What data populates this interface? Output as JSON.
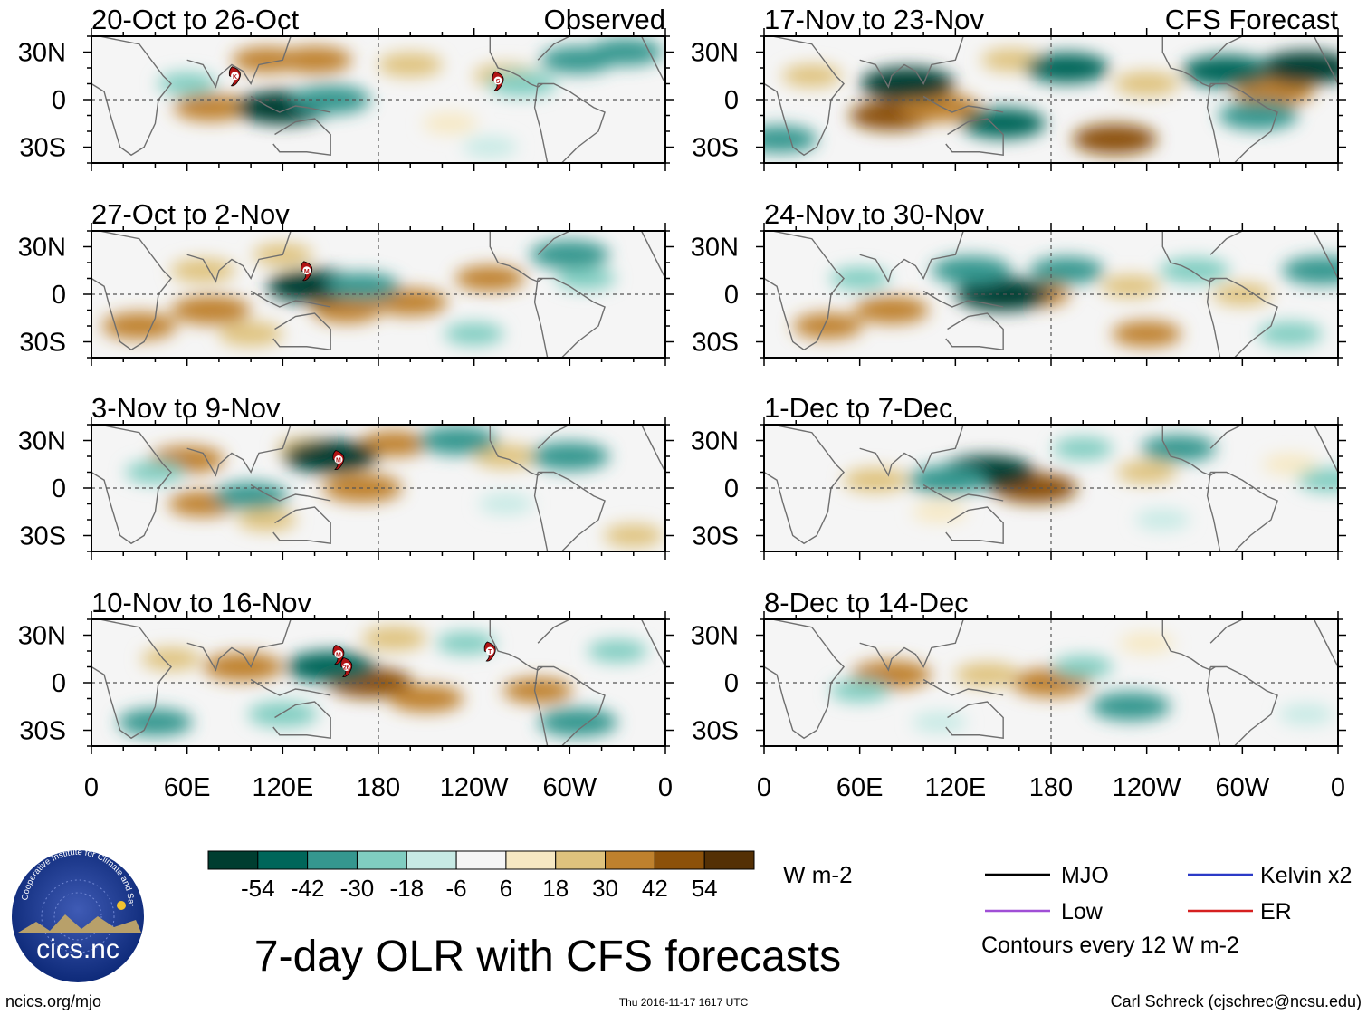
{
  "chart_data": {
    "type": "heatmap",
    "title": "7-day OLR with CFS forecasts",
    "variable": "OLR anomaly",
    "units": "W m-2",
    "lat_labels": [
      "30N",
      "0",
      "30S"
    ],
    "lat_values": [
      30,
      0,
      -30
    ],
    "lon_labels": [
      "0",
      "60E",
      "120E",
      "180",
      "120W",
      "60W",
      "0"
    ],
    "lon_values": [
      0,
      60,
      120,
      180,
      240,
      300,
      360
    ],
    "xlim": [
      0,
      360
    ],
    "ylim": [
      -40,
      40
    ],
    "left_column_label": "Observed",
    "right_column_label": "CFS Forecast",
    "panels": [
      {
        "id": "obs1",
        "column": "left",
        "row": 0,
        "title": "20-Oct to 26-Oct",
        "tag": "Observed",
        "anomalies": [
          {
            "lon": 75,
            "lat": -5,
            "value": 35
          },
          {
            "lon": 110,
            "lat": 25,
            "value": 30
          },
          {
            "lon": 140,
            "lat": 25,
            "value": 35
          },
          {
            "lon": 200,
            "lat": 22,
            "value": 25
          },
          {
            "lon": 260,
            "lat": 15,
            "value": 25
          },
          {
            "lon": 225,
            "lat": -15,
            "value": 15
          },
          {
            "lon": 120,
            "lat": -5,
            "value": -55
          },
          {
            "lon": 150,
            "lat": 0,
            "value": -40
          },
          {
            "lon": 60,
            "lat": 10,
            "value": -20
          },
          {
            "lon": 305,
            "lat": 25,
            "value": -35
          },
          {
            "lon": 335,
            "lat": 30,
            "value": -35
          },
          {
            "lon": 250,
            "lat": -30,
            "value": -15
          },
          {
            "lon": 270,
            "lat": 10,
            "value": -30
          }
        ],
        "storms": [
          {
            "label": "K",
            "lon": 90,
            "lat": 15
          },
          {
            "label": "S",
            "lon": 255,
            "lat": 12
          }
        ]
      },
      {
        "id": "obs2",
        "column": "left",
        "row": 1,
        "title": "27-Oct to 2-Nov",
        "anomalies": [
          {
            "lon": 70,
            "lat": 15,
            "value": 25
          },
          {
            "lon": 75,
            "lat": -10,
            "value": 40
          },
          {
            "lon": 120,
            "lat": 25,
            "value": 20
          },
          {
            "lon": 200,
            "lat": -5,
            "value": 35
          },
          {
            "lon": 160,
            "lat": -10,
            "value": 30
          },
          {
            "lon": 250,
            "lat": 10,
            "value": 30
          },
          {
            "lon": 30,
            "lat": -20,
            "value": 35
          },
          {
            "lon": 100,
            "lat": -25,
            "value": 25
          },
          {
            "lon": 140,
            "lat": 5,
            "value": -55
          },
          {
            "lon": 170,
            "lat": 5,
            "value": -35
          },
          {
            "lon": 300,
            "lat": 25,
            "value": -40
          },
          {
            "lon": 240,
            "lat": -25,
            "value": -20
          },
          {
            "lon": 310,
            "lat": 10,
            "value": -20
          }
        ],
        "storms": [
          {
            "label": "M",
            "lon": 135,
            "lat": 15
          }
        ]
      },
      {
        "id": "obs3",
        "column": "left",
        "row": 2,
        "title": "3-Nov to 9-Nov",
        "anomalies": [
          {
            "lon": 60,
            "lat": 18,
            "value": 35
          },
          {
            "lon": 70,
            "lat": -10,
            "value": 30
          },
          {
            "lon": 170,
            "lat": 0,
            "value": 40
          },
          {
            "lon": 190,
            "lat": 28,
            "value": 30
          },
          {
            "lon": 135,
            "lat": 25,
            "value": 20
          },
          {
            "lon": 260,
            "lat": 20,
            "value": 25
          },
          {
            "lon": 110,
            "lat": -20,
            "value": 20
          },
          {
            "lon": 340,
            "lat": -30,
            "value": 20
          },
          {
            "lon": 150,
            "lat": 20,
            "value": -55
          },
          {
            "lon": 230,
            "lat": 30,
            "value": -40
          },
          {
            "lon": 300,
            "lat": 20,
            "value": -40
          },
          {
            "lon": 100,
            "lat": -5,
            "value": -35
          },
          {
            "lon": 40,
            "lat": 10,
            "value": -20
          },
          {
            "lon": 260,
            "lat": -10,
            "value": -15
          }
        ],
        "storms": [
          {
            "label": "M",
            "lon": 155,
            "lat": 18
          }
        ]
      },
      {
        "id": "obs4",
        "column": "left",
        "row": 3,
        "title": "10-Nov to 16-Nov",
        "anomalies": [
          {
            "lon": 95,
            "lat": 10,
            "value": 40
          },
          {
            "lon": 175,
            "lat": 0,
            "value": 45
          },
          {
            "lon": 210,
            "lat": -10,
            "value": 35
          },
          {
            "lon": 190,
            "lat": 28,
            "value": 25
          },
          {
            "lon": 280,
            "lat": -5,
            "value": 30
          },
          {
            "lon": 50,
            "lat": 15,
            "value": 20
          },
          {
            "lon": 150,
            "lat": 10,
            "value": -50
          },
          {
            "lon": 120,
            "lat": -20,
            "value": -30
          },
          {
            "lon": 305,
            "lat": -25,
            "value": -40
          },
          {
            "lon": 40,
            "lat": -25,
            "value": -35
          },
          {
            "lon": 235,
            "lat": 25,
            "value": -20
          },
          {
            "lon": 330,
            "lat": 20,
            "value": -20
          }
        ],
        "storms": [
          {
            "label": "M",
            "lon": 155,
            "lat": 18
          },
          {
            "label": "26",
            "lon": 160,
            "lat": 10
          },
          {
            "label": "T",
            "lon": 250,
            "lat": 20
          }
        ]
      },
      {
        "id": "fcst1",
        "column": "right",
        "row": 0,
        "title": "17-Nov to 23-Nov",
        "tag": "CFS Forecast",
        "anomalies": [
          {
            "lon": 80,
            "lat": -10,
            "value": 45
          },
          {
            "lon": 110,
            "lat": -5,
            "value": 40
          },
          {
            "lon": 220,
            "lat": -25,
            "value": 45
          },
          {
            "lon": 320,
            "lat": 5,
            "value": 40
          },
          {
            "lon": 155,
            "lat": 25,
            "value": 20
          },
          {
            "lon": 240,
            "lat": 10,
            "value": 25
          },
          {
            "lon": 30,
            "lat": 15,
            "value": 20
          },
          {
            "lon": 90,
            "lat": 10,
            "value": -55
          },
          {
            "lon": 150,
            "lat": -15,
            "value": -45
          },
          {
            "lon": 190,
            "lat": 20,
            "value": -45
          },
          {
            "lon": 340,
            "lat": 20,
            "value": -55
          },
          {
            "lon": 290,
            "lat": 18,
            "value": -50
          },
          {
            "lon": 10,
            "lat": -25,
            "value": -35
          },
          {
            "lon": 310,
            "lat": -10,
            "value": -40
          }
        ],
        "storms": []
      },
      {
        "id": "fcst2",
        "column": "right",
        "row": 1,
        "title": "24-Nov to 30-Nov",
        "anomalies": [
          {
            "lon": 80,
            "lat": -10,
            "value": 35
          },
          {
            "lon": 170,
            "lat": 0,
            "value": 30
          },
          {
            "lon": 240,
            "lat": -25,
            "value": 30
          },
          {
            "lon": 40,
            "lat": -20,
            "value": 30
          },
          {
            "lon": 300,
            "lat": 0,
            "value": 20
          },
          {
            "lon": 230,
            "lat": 5,
            "value": 20
          },
          {
            "lon": 150,
            "lat": 0,
            "value": -55
          },
          {
            "lon": 130,
            "lat": 15,
            "value": -40
          },
          {
            "lon": 190,
            "lat": 15,
            "value": -35
          },
          {
            "lon": 350,
            "lat": 15,
            "value": -40
          },
          {
            "lon": 270,
            "lat": 15,
            "value": -30
          },
          {
            "lon": 60,
            "lat": 10,
            "value": -20
          },
          {
            "lon": 330,
            "lat": -25,
            "value": -25
          }
        ],
        "storms": []
      },
      {
        "id": "fcst3",
        "column": "right",
        "row": 2,
        "title": "1-Dec to 7-Dec",
        "anomalies": [
          {
            "lon": 170,
            "lat": 0,
            "value": 45
          },
          {
            "lon": 70,
            "lat": 5,
            "value": 25
          },
          {
            "lon": 240,
            "lat": 10,
            "value": 20
          },
          {
            "lon": 330,
            "lat": 15,
            "value": 15
          },
          {
            "lon": 110,
            "lat": -15,
            "value": 15
          },
          {
            "lon": 140,
            "lat": 10,
            "value": -55
          },
          {
            "lon": 115,
            "lat": 5,
            "value": -40
          },
          {
            "lon": 260,
            "lat": 25,
            "value": -35
          },
          {
            "lon": 200,
            "lat": 25,
            "value": -20
          },
          {
            "lon": 355,
            "lat": 5,
            "value": -25
          },
          {
            "lon": 250,
            "lat": -20,
            "value": -15
          }
        ],
        "storms": []
      },
      {
        "id": "fcst4",
        "column": "right",
        "row": 3,
        "title": "8-Dec to 14-Dec",
        "anomalies": [
          {
            "lon": 80,
            "lat": 5,
            "value": 40
          },
          {
            "lon": 180,
            "lat": 0,
            "value": 40
          },
          {
            "lon": 140,
            "lat": 5,
            "value": 25
          },
          {
            "lon": 240,
            "lat": 25,
            "value": 15
          },
          {
            "lon": 230,
            "lat": -15,
            "value": -40
          },
          {
            "lon": 200,
            "lat": 10,
            "value": -20
          },
          {
            "lon": 60,
            "lat": -5,
            "value": -20
          },
          {
            "lon": 340,
            "lat": -20,
            "value": -15
          },
          {
            "lon": 110,
            "lat": -25,
            "value": -15
          }
        ],
        "storms": []
      }
    ],
    "colorbar": {
      "ticks": [
        "-54",
        "-42",
        "-30",
        "-18",
        "-6",
        "6",
        "18",
        "30",
        "42",
        "54"
      ],
      "colors": [
        "#003d30",
        "#00665a",
        "#35978f",
        "#80cdc1",
        "#c7eae5",
        "#f5f5f5",
        "#f6e8c3",
        "#dfc27d",
        "#bf812d",
        "#8c510a",
        "#543005"
      ],
      "units": "W m-2"
    },
    "legend": [
      {
        "name": "MJO",
        "color": "#000000"
      },
      {
        "name": "Kelvin x2",
        "color": "#2b3ac7"
      },
      {
        "name": "Low",
        "color": "#a04fd6"
      },
      {
        "name": "ER",
        "color": "#d62020"
      }
    ],
    "contour_note": "Contours every 12 W m-2"
  },
  "logo": {
    "text": "cics.nc",
    "ring_text": "Cooperative Institute for Climate and Satellites"
  },
  "footer": {
    "left": "ncics.org/mjo",
    "center": "Thu 2016-11-17 1617 UTC",
    "right": "Carl Schreck (cjschrec@ncsu.edu)"
  }
}
